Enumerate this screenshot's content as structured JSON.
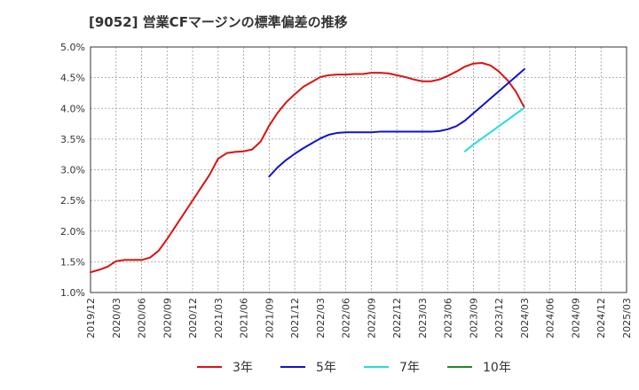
{
  "chart_data": {
    "type": "line",
    "title": "[9052]  営業CFマージンの標準偏差の推移",
    "xlabel": "",
    "ylabel": "",
    "ylim": [
      0.01,
      0.05
    ],
    "y_ticks": [
      {
        "value": 0.01,
        "label": "1.0%"
      },
      {
        "value": 0.015,
        "label": "1.5%"
      },
      {
        "value": 0.02,
        "label": "2.0%"
      },
      {
        "value": 0.025,
        "label": "2.5%"
      },
      {
        "value": 0.03,
        "label": "3.0%"
      },
      {
        "value": 0.035,
        "label": "3.5%"
      },
      {
        "value": 0.04,
        "label": "4.0%"
      },
      {
        "value": 0.045,
        "label": "4.5%"
      },
      {
        "value": 0.05,
        "label": "5.0%"
      }
    ],
    "x_ticks": [
      "2019/12",
      "2020/03",
      "2020/06",
      "2020/09",
      "2020/12",
      "2021/03",
      "2021/06",
      "2021/09",
      "2021/12",
      "2022/03",
      "2022/06",
      "2022/09",
      "2022/12",
      "2023/03",
      "2023/06",
      "2023/09",
      "2023/12",
      "2024/03",
      "2024/06",
      "2024/09",
      "2024/12",
      "2025/03"
    ],
    "legend_position": "bottom",
    "series": [
      {
        "name": "3年",
        "color": "#dd1111",
        "points": [
          [
            "2019/12",
            0.0133
          ],
          [
            "2020/01",
            0.0137
          ],
          [
            "2020/02",
            0.0142
          ],
          [
            "2020/03",
            0.0151
          ],
          [
            "2020/04",
            0.0153
          ],
          [
            "2020/05",
            0.0153
          ],
          [
            "2020/06",
            0.0153
          ],
          [
            "2020/07",
            0.0157
          ],
          [
            "2020/08",
            0.0168
          ],
          [
            "2020/09",
            0.0187
          ],
          [
            "2020/10",
            0.0208
          ],
          [
            "2020/11",
            0.0229
          ],
          [
            "2020/12",
            0.025
          ],
          [
            "2021/01",
            0.0271
          ],
          [
            "2021/02",
            0.0292
          ],
          [
            "2021/03",
            0.0318
          ],
          [
            "2021/04",
            0.0327
          ],
          [
            "2021/05",
            0.0329
          ],
          [
            "2021/06",
            0.033
          ],
          [
            "2021/07",
            0.0333
          ],
          [
            "2021/08",
            0.0346
          ],
          [
            "2021/09",
            0.0372
          ],
          [
            "2021/10",
            0.0393
          ],
          [
            "2021/11",
            0.041
          ],
          [
            "2021/12",
            0.0423
          ],
          [
            "2022/01",
            0.0435
          ],
          [
            "2022/02",
            0.0443
          ],
          [
            "2022/03",
            0.0451
          ],
          [
            "2022/04",
            0.0454
          ],
          [
            "2022/05",
            0.0455
          ],
          [
            "2022/06",
            0.0455
          ],
          [
            "2022/07",
            0.0456
          ],
          [
            "2022/08",
            0.0456
          ],
          [
            "2022/09",
            0.0458
          ],
          [
            "2022/10",
            0.0458
          ],
          [
            "2022/11",
            0.0457
          ],
          [
            "2022/12",
            0.0454
          ],
          [
            "2023/01",
            0.0451
          ],
          [
            "2023/02",
            0.0447
          ],
          [
            "2023/03",
            0.0444
          ],
          [
            "2023/04",
            0.0444
          ],
          [
            "2023/05",
            0.0447
          ],
          [
            "2023/06",
            0.0453
          ],
          [
            "2023/07",
            0.046
          ],
          [
            "2023/08",
            0.0468
          ],
          [
            "2023/09",
            0.0473
          ],
          [
            "2023/10",
            0.0474
          ],
          [
            "2023/11",
            0.047
          ],
          [
            "2023/12",
            0.046
          ],
          [
            "2024/01",
            0.0446
          ],
          [
            "2024/02",
            0.0427
          ],
          [
            "2024/03",
            0.0401
          ]
        ]
      },
      {
        "name": "5年",
        "color": "#1111cc",
        "points": [
          [
            "2021/09",
            0.0289
          ],
          [
            "2021/10",
            0.0304
          ],
          [
            "2021/11",
            0.0316
          ],
          [
            "2021/12",
            0.0326
          ],
          [
            "2022/01",
            0.0335
          ],
          [
            "2022/02",
            0.0343
          ],
          [
            "2022/03",
            0.0351
          ],
          [
            "2022/04",
            0.0357
          ],
          [
            "2022/05",
            0.036
          ],
          [
            "2022/06",
            0.0361
          ],
          [
            "2022/07",
            0.0361
          ],
          [
            "2022/08",
            0.0361
          ],
          [
            "2022/09",
            0.0361
          ],
          [
            "2022/10",
            0.0362
          ],
          [
            "2022/11",
            0.0362
          ],
          [
            "2022/12",
            0.0362
          ],
          [
            "2023/01",
            0.0362
          ],
          [
            "2023/02",
            0.0362
          ],
          [
            "2023/03",
            0.0362
          ],
          [
            "2023/04",
            0.0362
          ],
          [
            "2023/05",
            0.0363
          ],
          [
            "2023/06",
            0.0366
          ],
          [
            "2023/07",
            0.0371
          ],
          [
            "2023/08",
            0.038
          ],
          [
            "2023/09",
            0.0392
          ],
          [
            "2023/10",
            0.0404
          ],
          [
            "2023/11",
            0.0416
          ],
          [
            "2023/12",
            0.0428
          ],
          [
            "2024/01",
            0.044
          ],
          [
            "2024/02",
            0.0452
          ],
          [
            "2024/03",
            0.0464
          ]
        ]
      },
      {
        "name": "7年",
        "color": "#22dddd",
        "points": [
          [
            "2023/08",
            0.033
          ],
          [
            "2023/09",
            0.0341
          ],
          [
            "2023/10",
            0.0351
          ],
          [
            "2023/11",
            0.0361
          ],
          [
            "2023/12",
            0.0371
          ],
          [
            "2024/01",
            0.0381
          ],
          [
            "2024/02",
            0.0391
          ],
          [
            "2024/03",
            0.0401
          ]
        ]
      },
      {
        "name": "10年",
        "color": "#228822",
        "points": []
      }
    ]
  }
}
